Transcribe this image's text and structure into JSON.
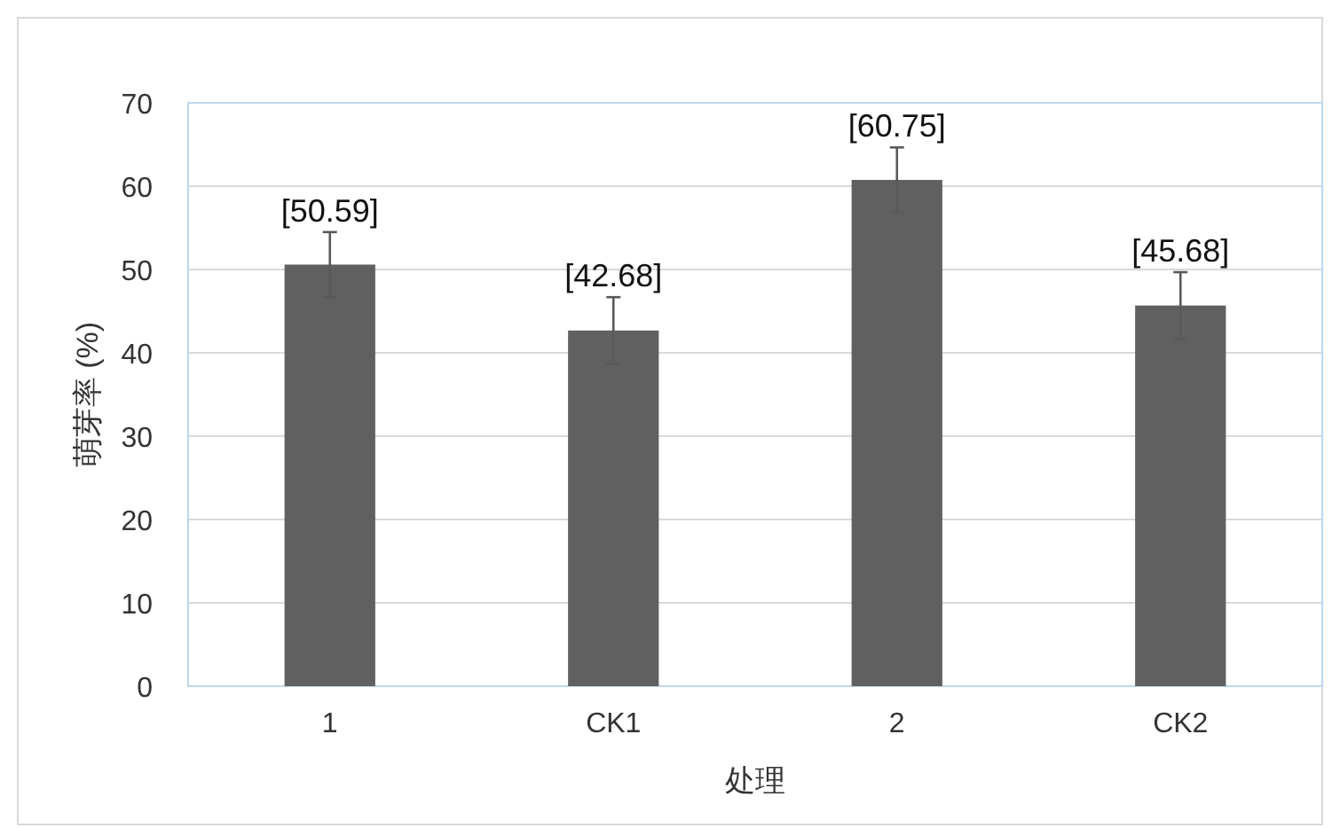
{
  "chart_data": {
    "type": "bar",
    "xlabel": "处理",
    "ylabel": "萌芽率 (%)",
    "categories": [
      "1",
      "CK1",
      "2",
      "CK2"
    ],
    "series": [
      {
        "color": "#606060",
        "values": [
          50.59,
          42.68,
          60.75,
          45.68
        ],
        "errors": [
          3.9,
          4.0,
          3.9,
          4.0
        ],
        "value_labels": [
          "[50.59]",
          "[42.68]",
          "[60.75]",
          "[45.68]"
        ]
      }
    ],
    "ylim": [
      0,
      70
    ],
    "yticks": [
      0,
      10,
      20,
      30,
      40,
      50,
      60,
      70
    ],
    "grid": "y"
  }
}
